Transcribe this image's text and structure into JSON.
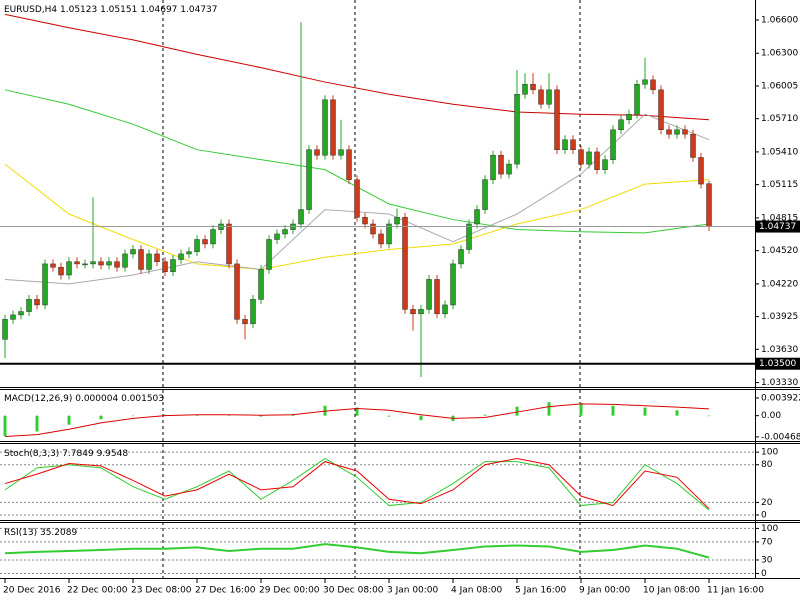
{
  "chart_data": [
    {
      "type": "candlestick",
      "title": "EURUSD,H4",
      "up_color": "#22aa22",
      "down_color": "#d03a1a",
      "open": [
        1.0372,
        1.039,
        1.0394,
        1.0397,
        1.0408,
        1.0403,
        1.044,
        1.0437,
        1.043,
        1.0442,
        1.044,
        1.044,
        1.0442,
        1.0439,
        1.0442,
        1.0437,
        1.0449,
        1.0453,
        1.0435,
        1.0449,
        1.0442,
        1.0433,
        1.0444,
        1.0449,
        1.0451,
        1.0462,
        1.0458,
        1.0471,
        1.0476,
        1.044,
        1.039,
        1.0386,
        1.0408,
        1.0435,
        1.0462,
        1.0467,
        1.0471,
        1.0476,
        1.0489,
        1.0543,
        1.0538,
        1.0588,
        1.0538,
        1.0543,
        1.0516,
        1.0482,
        1.0476,
        1.0467,
        1.0458,
        1.0476,
        1.0482,
        1.0399,
        1.0395,
        1.0399,
        1.0426,
        1.0395,
        1.0403,
        1.044,
        1.0453,
        1.0476,
        1.0489,
        1.0516,
        1.0538,
        1.0521,
        1.053,
        1.0593,
        1.0602,
        1.0597,
        1.0584,
        1.0597,
        1.0543,
        1.0552,
        1.0543,
        1.053,
        1.0541,
        1.0525,
        1.0534,
        1.0561,
        1.057,
        1.0575,
        1.0602,
        1.0606,
        1.0597,
        1.0561,
        1.0557,
        1.0561,
        1.0557,
        1.0536,
        1.05123
      ],
      "high": [
        1.0394,
        1.0398,
        1.0401,
        1.0412,
        1.0412,
        1.0444,
        1.0444,
        1.0441,
        1.0446,
        1.0446,
        1.0444,
        1.05,
        1.0446,
        1.0446,
        1.0446,
        1.0453,
        1.0457,
        1.0457,
        1.0453,
        1.0453,
        1.0446,
        1.0448,
        1.0453,
        1.0455,
        1.0466,
        1.0466,
        1.0475,
        1.048,
        1.048,
        1.0444,
        1.0394,
        1.0412,
        1.0439,
        1.0466,
        1.0471,
        1.0475,
        1.048,
        1.0658,
        1.0547,
        1.0547,
        1.0592,
        1.0592,
        1.057,
        1.0547,
        1.052,
        1.0486,
        1.048,
        1.0471,
        1.048,
        1.049,
        1.0486,
        1.0403,
        1.0403,
        1.043,
        1.043,
        1.0407,
        1.0444,
        1.0457,
        1.048,
        1.0493,
        1.052,
        1.0542,
        1.0542,
        1.0534,
        1.0615,
        1.0612,
        1.0612,
        1.0601,
        1.0612,
        1.0601,
        1.0556,
        1.0556,
        1.0547,
        1.0545,
        1.0545,
        1.0538,
        1.0565,
        1.0574,
        1.0579,
        1.0606,
        1.0626,
        1.061,
        1.0601,
        1.0565,
        1.0565,
        1.0565,
        1.0561,
        1.054,
        1.05151
      ],
      "low": [
        1.0355,
        1.0386,
        1.039,
        1.0393,
        1.0399,
        1.0399,
        1.0433,
        1.0426,
        1.0426,
        1.0436,
        1.0436,
        1.0436,
        1.0435,
        1.0435,
        1.0433,
        1.0433,
        1.0445,
        1.0431,
        1.0431,
        1.0438,
        1.0429,
        1.0429,
        1.044,
        1.0445,
        1.0447,
        1.0454,
        1.0454,
        1.0467,
        1.0436,
        1.0386,
        1.0372,
        1.0382,
        1.0404,
        1.0431,
        1.0458,
        1.0463,
        1.0467,
        1.0472,
        1.0485,
        1.0534,
        1.0534,
        1.0534,
        1.0534,
        1.0512,
        1.0478,
        1.0472,
        1.0463,
        1.0454,
        1.0454,
        1.0472,
        1.0395,
        1.038,
        1.0338,
        1.0395,
        1.0391,
        1.0391,
        1.0399,
        1.0436,
        1.0449,
        1.0472,
        1.0485,
        1.0512,
        1.0517,
        1.0517,
        1.0526,
        1.0589,
        1.0593,
        1.058,
        1.058,
        1.0539,
        1.0539,
        1.0539,
        1.0526,
        1.0526,
        1.0521,
        1.0521,
        1.053,
        1.0557,
        1.0566,
        1.0571,
        1.0598,
        1.0593,
        1.0557,
        1.0553,
        1.0553,
        1.0553,
        1.0532,
        1.0508,
        1.04697
      ],
      "close": [
        1.039,
        1.0394,
        1.0397,
        1.0408,
        1.0403,
        1.044,
        1.0437,
        1.043,
        1.0442,
        1.044,
        1.044,
        1.0442,
        1.0439,
        1.0442,
        1.0437,
        1.0449,
        1.0453,
        1.0435,
        1.0449,
        1.0442,
        1.0433,
        1.0444,
        1.0449,
        1.0451,
        1.0462,
        1.0458,
        1.0471,
        1.0476,
        1.044,
        1.039,
        1.0386,
        1.0408,
        1.0435,
        1.0462,
        1.0467,
        1.0471,
        1.0476,
        1.0489,
        1.0543,
        1.0538,
        1.0588,
        1.0538,
        1.0543,
        1.0516,
        1.0482,
        1.0476,
        1.0467,
        1.0458,
        1.0476,
        1.0482,
        1.0399,
        1.0395,
        1.0399,
        1.0426,
        1.0395,
        1.0403,
        1.044,
        1.0453,
        1.0476,
        1.0489,
        1.0516,
        1.0538,
        1.0521,
        1.053,
        1.0593,
        1.0602,
        1.0597,
        1.0584,
        1.0597,
        1.0543,
        1.0552,
        1.0543,
        1.053,
        1.0541,
        1.0525,
        1.0534,
        1.0561,
        1.057,
        1.0575,
        1.0602,
        1.0606,
        1.0597,
        1.0561,
        1.0557,
        1.0561,
        1.0557,
        1.0536,
        1.0512,
        1.04737
      ],
      "lines": [
        {
          "color": "#cc0000",
          "x": [
            0,
            8,
            16,
            24,
            32,
            40,
            48,
            56,
            64,
            72,
            80,
            88
          ],
          "values": [
            1.0665,
            1.0653,
            1.0642,
            1.0629,
            1.0617,
            1.0604,
            1.0593,
            1.0584,
            1.0577,
            1.0575,
            1.0574,
            1.057
          ]
        },
        {
          "color": "#33cc33",
          "x": [
            0,
            8,
            16,
            24,
            32,
            40,
            48,
            56,
            64,
            72,
            80,
            88
          ],
          "values": [
            1.0597,
            1.0584,
            1.0566,
            1.0543,
            1.0534,
            1.0525,
            1.0494,
            1.048,
            1.0471,
            1.0469,
            1.0468,
            1.0476
          ]
        },
        {
          "color": "#eedd00",
          "x": [
            0,
            8,
            16,
            24,
            32,
            40,
            48,
            56,
            64,
            72,
            80,
            88
          ],
          "values": [
            1.053,
            1.0485,
            1.0462,
            1.044,
            1.0435,
            1.0446,
            1.0453,
            1.0458,
            1.0476,
            1.0489,
            1.0512,
            1.0516
          ]
        },
        {
          "color": "#aaaaaa",
          "x": [
            0,
            8,
            16,
            24,
            32,
            40,
            48,
            56,
            64,
            72,
            80,
            88
          ],
          "values": [
            1.0426,
            1.0422,
            1.043,
            1.0442,
            1.0435,
            1.0489,
            1.0485,
            1.046,
            1.0485,
            1.0521,
            1.0575,
            1.0552
          ]
        }
      ],
      "hlines": [
        {
          "value": 1.04737,
          "label": "1.04737",
          "color": "#999999"
        },
        {
          "value": 1.035,
          "label": "1.03500",
          "color": "#000000"
        }
      ],
      "xlim": [
        -0.625,
        93.75
      ],
      "xticks": [
        {
          "value": 0,
          "label": "20 Dec 2016"
        },
        {
          "value": 8,
          "label": "22 Dec 00:00"
        },
        {
          "value": 16,
          "label": "23 Dec 08:00"
        },
        {
          "value": 24,
          "label": "27 Dec 16:00"
        },
        {
          "value": 32,
          "label": "29 Dec 00:00"
        },
        {
          "value": 40,
          "label": "30 Dec 08:00"
        },
        {
          "value": 48,
          "label": "3 Jan 00:00"
        },
        {
          "value": 56,
          "label": "4 Jan 08:00"
        },
        {
          "value": 64,
          "label": "5 Jan 16:00"
        },
        {
          "value": 72,
          "label": "9 Jan 00:00"
        },
        {
          "value": 80,
          "label": "10 Jan 08:00"
        },
        {
          "value": 88,
          "label": "11 Jan 16:00"
        }
      ],
      "ylim": [
        1.0329,
        1.0678
      ],
      "yticks": [
        {
          "value": 1.066,
          "label": "1.06600"
        },
        {
          "value": 1.063,
          "label": "1.06300"
        },
        {
          "value": 1.06005,
          "label": "1.06005"
        },
        {
          "value": 1.0571,
          "label": "1.05710"
        },
        {
          "value": 1.0541,
          "label": "1.05410"
        },
        {
          "value": 1.05115,
          "label": "1.05115"
        },
        {
          "value": 1.04815,
          "label": "1.04815"
        },
        {
          "value": 1.0452,
          "label": "1.04520"
        },
        {
          "value": 1.0422,
          "label": "1.04220"
        },
        {
          "value": 1.03925,
          "label": "1.03925"
        },
        {
          "value": 1.0363,
          "label": "1.03630"
        },
        {
          "value": 1.0333,
          "label": "1.03330"
        }
      ]
    },
    {
      "type": "macd",
      "title": "MACD(12,26,9)",
      "x": [
        0,
        4,
        8,
        12,
        16,
        20,
        24,
        28,
        32,
        36,
        40,
        44,
        48,
        52,
        56,
        60,
        64,
        68,
        72,
        76,
        80,
        84,
        88
      ],
      "series": [
        {
          "color": "#33cc33",
          "values": [
            -0.0045,
            -0.0035,
            -0.002,
            -0.0008,
            0,
            0.0002,
            0.0002,
            0.0001,
            -0.0002,
            0.0004,
            0.0022,
            0.0018,
            -0.0002,
            -0.001,
            -0.0012,
            0.0002,
            0.002,
            0.003,
            0.0028,
            0.0022,
            0.0018,
            0.0012,
            4e-06
          ]
        },
        {
          "color": "#dd0000",
          "values": [
            -0.0046,
            -0.0042,
            -0.003,
            -0.0016,
            -0.0006,
            0,
            0.0002,
            0.0002,
            0.0001,
            0.0002,
            0.001,
            0.0016,
            0.0012,
            0.0002,
            -0.0006,
            -0.0004,
            0.0008,
            0.002,
            0.0026,
            0.0025,
            0.0022,
            0.0019,
            0.001503
          ]
        }
      ],
      "ylim": [
        -0.0056,
        0.0059
      ],
      "yticks": [
        0.003922,
        {
          "value": 0,
          "label": "0.00"
        },
        -0.004689
      ]
    },
    {
      "type": "line",
      "title": "Stoch(8,3,3)",
      "x": [
        0,
        4,
        8,
        12,
        16,
        20,
        24,
        28,
        32,
        36,
        40,
        44,
        48,
        52,
        56,
        60,
        64,
        68,
        72,
        76,
        80,
        84,
        88
      ],
      "series": [
        {
          "color": "#33cc33",
          "values": [
            40,
            75,
            80,
            75,
            45,
            25,
            45,
            70,
            25,
            55,
            90,
            60,
            15,
            20,
            50,
            85,
            85,
            75,
            15,
            20,
            80,
            50,
            7.7849
          ]
        },
        {
          "color": "#ee0000",
          "values": [
            50,
            65,
            82,
            78,
            55,
            30,
            40,
            65,
            40,
            45,
            85,
            70,
            25,
            18,
            40,
            80,
            90,
            80,
            30,
            15,
            70,
            60,
            9.9548
          ]
        }
      ],
      "ylim": [
        -8,
        113
      ],
      "yticks": [
        100,
        80,
        20,
        0
      ],
      "grid": true
    },
    {
      "type": "line",
      "title": "RSI(13)",
      "x": [
        0,
        4,
        8,
        12,
        16,
        20,
        24,
        28,
        32,
        36,
        40,
        44,
        48,
        52,
        56,
        60,
        64,
        68,
        72,
        76,
        80,
        84,
        88
      ],
      "series": [
        {
          "color": "#33cc33",
          "values": [
            45,
            48,
            50,
            52,
            55,
            55,
            58,
            50,
            55,
            55,
            65,
            58,
            48,
            45,
            52,
            60,
            62,
            60,
            48,
            52,
            62,
            55,
            35.2089
          ]
        }
      ],
      "ylim": [
        -10,
        112
      ],
      "yticks": [
        100,
        70,
        30,
        0
      ],
      "grid": true
    }
  ]
}
